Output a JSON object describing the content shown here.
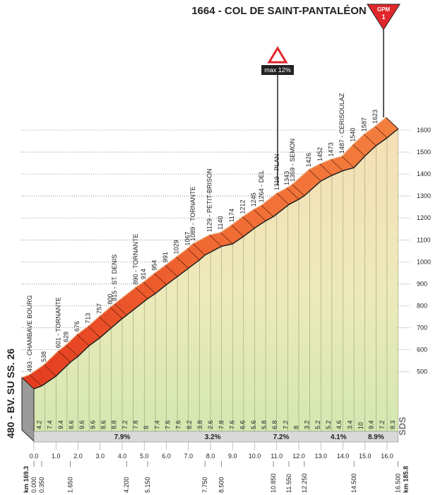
{
  "chart_data": {
    "type": "profile",
    "title": "1664 - COL DE SAINT-PANTALÉON",
    "badge": {
      "text": "GPM",
      "rank": "1"
    },
    "max_grade": "max 12%",
    "logo": "SDS",
    "xlim": [
      0,
      16.5
    ],
    "ylim": [
      280,
      1600
    ],
    "yticks": [
      500,
      600,
      700,
      800,
      900,
      1000,
      1100,
      1200,
      1300,
      1400,
      1500,
      1600
    ],
    "grid": true,
    "xticks": [
      {
        "value": 0,
        "label": "0.0"
      },
      {
        "value": 1,
        "label": "1.0"
      },
      {
        "value": 2,
        "label": "2.0"
      },
      {
        "value": 3,
        "label": "3.0"
      },
      {
        "value": 4,
        "label": "4.0"
      },
      {
        "value": 5,
        "label": "5.0"
      },
      {
        "value": 6,
        "label": "6.0"
      },
      {
        "value": 7,
        "label": "7.0"
      },
      {
        "value": 8,
        "label": "8.0"
      },
      {
        "value": 9,
        "label": "9.0"
      },
      {
        "value": 10,
        "label": "10.0"
      },
      {
        "value": 11,
        "label": "11.0"
      },
      {
        "value": 12,
        "label": "12.0"
      },
      {
        "value": 13,
        "label": "13.0"
      },
      {
        "value": 14,
        "label": "14.0"
      },
      {
        "value": 15,
        "label": "15.0"
      },
      {
        "value": 16,
        "label": "16.0"
      }
    ],
    "profile": {
      "x": [
        0,
        0.35,
        1.0,
        1.65,
        2.0,
        2.5,
        3.0,
        3.5,
        4.0,
        4.2,
        5.15,
        5.5,
        6.0,
        6.5,
        7.0,
        7.5,
        7.75,
        8.5,
        9.0,
        9.5,
        10.0,
        10.5,
        10.85,
        11.55,
        12.0,
        12.25,
        13.0,
        13.5,
        14.0,
        14.5,
        15.0,
        15.5,
        16.0,
        16.5
      ],
      "elevation": [
        480,
        493,
        538,
        601,
        628,
        676,
        713,
        757,
        800,
        815,
        890,
        914,
        954,
        991,
        1029,
        1067,
        1089,
        1129,
        1140,
        1174,
        1212,
        1245,
        1264,
        1319,
        1343,
        1359,
        1426,
        1452,
        1473,
        1487,
        1540,
        1587,
        1623,
        1664
      ],
      "labels": [
        "480 - BV. SU SS. 26",
        "493 - CHAMBAVE BOURG",
        "538",
        "601 - TORNANTE",
        "628",
        "676",
        "713",
        "757",
        "800",
        "815 - ST. DENIS",
        "890 - TORNANTE",
        "914",
        "954",
        "991",
        "1029",
        "1067",
        "1089 - TORNANTE",
        "1129 - PETIT-BRISON",
        "1140",
        "1174",
        "1212",
        "1245",
        "1264 - DEL",
        "1319 - PLAN",
        "1343",
        "1359 - SEMON",
        "1426",
        "1452",
        "1473",
        "1487 - CERISOULAZ",
        "1540",
        "1587",
        "1623",
        null
      ]
    },
    "gradients": [
      4.2,
      7.4,
      9.4,
      8.6,
      9.6,
      9.6,
      8.6,
      8.8,
      7.2,
      7.8,
      8.0,
      7.4,
      7.6,
      7.6,
      8.2,
      3.8,
      2.6,
      7.8,
      7.6,
      6.6,
      5.6,
      5.8,
      6.8,
      7.2,
      8.0,
      3.2,
      5.2,
      5.2,
      4.6,
      3.4,
      10.0,
      9.4,
      7.2,
      8.3
    ],
    "average_gradients": [
      {
        "value": 7.9,
        "label": "7.9%"
      },
      {
        "value": 3.2,
        "label": "3.2%"
      },
      {
        "value": 7.2,
        "label": "7.2%"
      },
      {
        "value": 4.1,
        "label": "4.1%"
      },
      {
        "value": 8.9,
        "label": "8.9%"
      }
    ],
    "km_markers": [
      {
        "value": 0,
        "label": "0.000"
      },
      {
        "value": 0.35,
        "label": "0.350"
      },
      {
        "value": 1.65,
        "label": "1.650"
      },
      {
        "value": 4.2,
        "label": "4.200"
      },
      {
        "value": 5.15,
        "label": "5.150"
      },
      {
        "value": 7.75,
        "label": "7.750"
      },
      {
        "value": 8.5,
        "label": "8.500"
      },
      {
        "value": 10.85,
        "label": "10.850"
      },
      {
        "value": 11.55,
        "label": "11.550"
      },
      {
        "value": 12.25,
        "label": "12.250"
      },
      {
        "value": 14.5,
        "label": "14.500"
      },
      {
        "value": 16.5,
        "label": "16.500"
      }
    ],
    "km_start": "km 169.3",
    "km_end": "km 185.8"
  }
}
